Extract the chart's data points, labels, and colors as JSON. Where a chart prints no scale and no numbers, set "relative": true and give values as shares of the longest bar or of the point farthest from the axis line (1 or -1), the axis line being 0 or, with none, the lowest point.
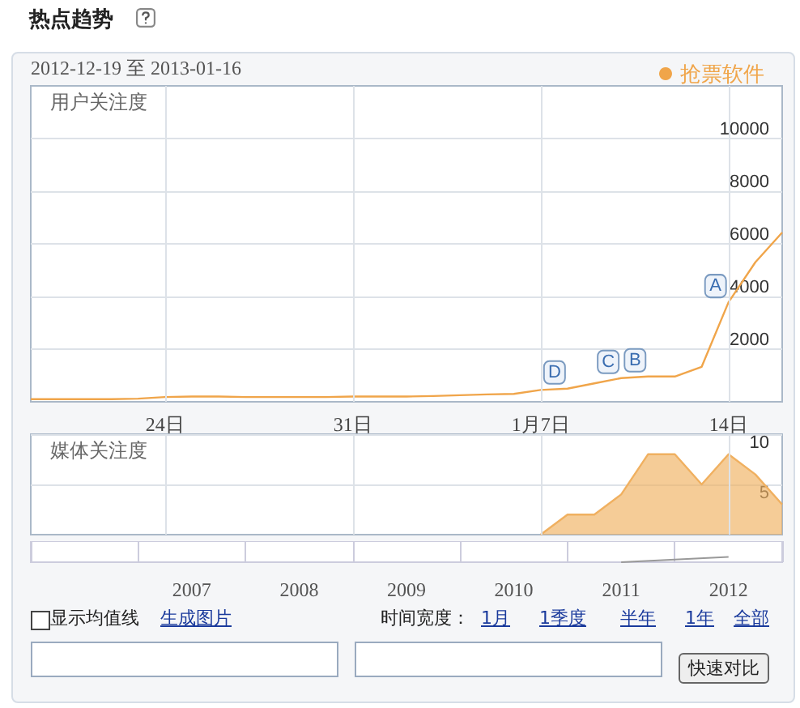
{
  "chart_data": [
    {
      "type": "line",
      "title": "热点趋势",
      "subtitle": "2012-12-19 至 2013-01-16",
      "ylabel": "用户关注度",
      "x": [
        "2012-12-19",
        "2012-12-20",
        "2012-12-21",
        "2012-12-22",
        "2012-12-23",
        "2012-12-24",
        "2012-12-25",
        "2012-12-26",
        "2012-12-27",
        "2012-12-28",
        "2012-12-29",
        "2012-12-30",
        "2012-12-31",
        "2013-01-01",
        "2013-01-02",
        "2013-01-03",
        "2013-01-04",
        "2013-01-05",
        "2013-01-06",
        "2013-01-07",
        "2013-01-08",
        "2013-01-09",
        "2013-01-10",
        "2013-01-11",
        "2013-01-12",
        "2013-01-13",
        "2013-01-14",
        "2013-01-15",
        "2013-01-16"
      ],
      "series": [
        {
          "name": "抢票软件",
          "color": "#f0a54a",
          "values": [
            100,
            100,
            100,
            100,
            120,
            180,
            200,
            200,
            180,
            180,
            180,
            180,
            200,
            200,
            200,
            220,
            250,
            280,
            300,
            450,
            500,
            700,
            900,
            960,
            960,
            1330,
            3780,
            5300,
            6430
          ]
        }
      ],
      "xlim": [
        "2012-12-19",
        "2013-01-16"
      ],
      "xticks": [
        {
          "value": "2012-12-24",
          "label": "24日"
        },
        {
          "value": "2012-12-31",
          "label": "31日"
        },
        {
          "value": "2013-01-07",
          "label": "1月7日"
        },
        {
          "value": "2013-01-14",
          "label": "14日"
        }
      ],
      "ylim": [
        0,
        12000
      ],
      "yticks": [
        2000,
        4000,
        6000,
        8000,
        10000
      ],
      "grid": true,
      "legend": "top right",
      "marker": "none",
      "line_style": "solid",
      "annotations": [
        {
          "text": "A",
          "x": "2013-01-14",
          "y": 3780
        },
        {
          "text": "B",
          "x": "2013-01-11",
          "y": 960
        },
        {
          "text": "C",
          "x": "2013-01-10",
          "y": 900
        },
        {
          "text": "D",
          "x": "2013-01-08",
          "y": 500
        }
      ]
    },
    {
      "type": "area",
      "ylabel": "媒体关注度",
      "x": [
        "2013-01-07",
        "2013-01-08",
        "2013-01-09",
        "2013-01-10",
        "2013-01-11",
        "2013-01-12",
        "2013-01-13",
        "2013-01-14",
        "2013-01-15",
        "2013-01-16"
      ],
      "series": [
        {
          "color": "#f0b060",
          "values": [
            0,
            2,
            2,
            4,
            8,
            8,
            5,
            8,
            6,
            3
          ]
        }
      ],
      "xlim": [
        "2012-12-19",
        "2013-01-16"
      ],
      "xticks": [
        {
          "value": "2012-12-24",
          "label": null
        },
        {
          "value": "2012-12-31",
          "label": null
        },
        {
          "value": "2013-01-07",
          "label": null
        },
        {
          "value": "2013-01-14",
          "label": null
        }
      ],
      "ylim": [
        0,
        10
      ],
      "yticks": [
        5,
        10
      ],
      "grid": true,
      "tick_labels": "y",
      "marker": "none"
    },
    {
      "type": "line",
      "relative": true,
      "categories": [
        null,
        "2007",
        "2008",
        "2009",
        "2010",
        "2011",
        "2012"
      ],
      "series": [
        {
          "color": "#999999",
          "values": [
            null,
            null,
            null,
            null,
            null,
            0,
            1
          ]
        }
      ],
      "grid": "x",
      "marker": "none",
      "annotations": [
        "显示均值线",
        "生成图片",
        "时间宽度：",
        "1月",
        "1季度",
        "半年",
        "1年",
        "全部",
        "快速对比"
      ]
    }
  ]
}
